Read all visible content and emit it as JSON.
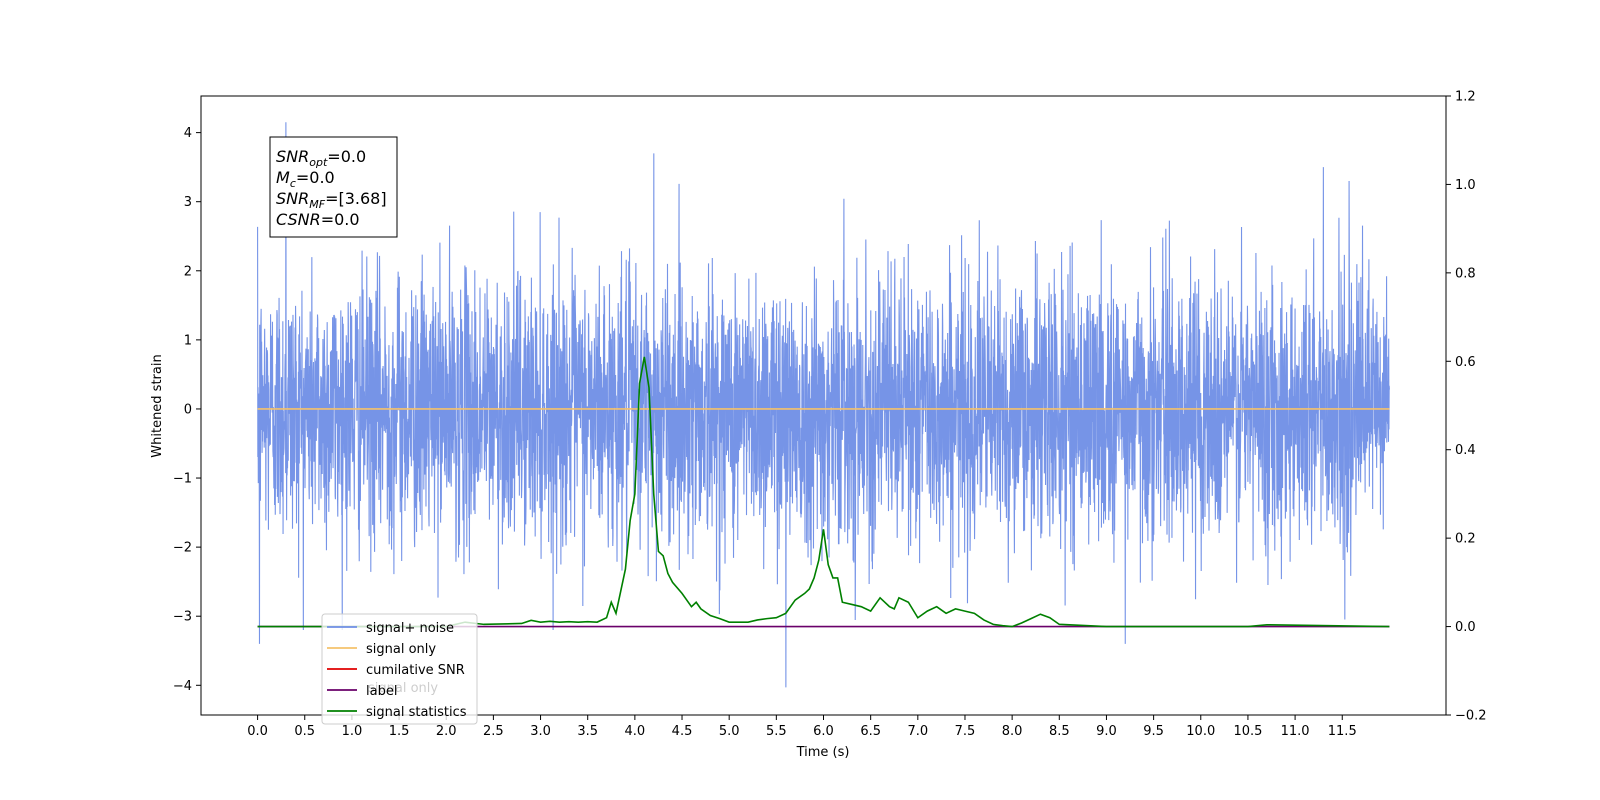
{
  "chart_data": {
    "type": "line",
    "xlabel": "Time (s)",
    "ylabel": "Whitened strain",
    "xlim": [
      -0.6,
      12.6
    ],
    "ylim": [
      -4.43,
      4.53
    ],
    "y2lim": [
      -0.2,
      1.2
    ],
    "x_ticks": [
      0.0,
      0.5,
      1.0,
      1.5,
      2.0,
      2.5,
      3.0,
      3.5,
      4.0,
      4.5,
      5.0,
      5.5,
      6.0,
      6.5,
      7.0,
      7.5,
      8.0,
      8.5,
      9.0,
      9.5,
      10.0,
      10.5,
      11.0,
      11.5
    ],
    "x_tick_labels": [
      "0.0",
      "0.5",
      "1.0",
      "1.5",
      "2.0",
      "2.5",
      "3.0",
      "3.5",
      "4.0",
      "4.5",
      "5.0",
      "5.5",
      "6.0",
      "6.5",
      "7.0",
      "7.5",
      "8.0",
      "8.5",
      "9.0",
      "9.5",
      "10.0",
      "10.5",
      "11.0",
      "11.5"
    ],
    "y_ticks": [
      4,
      3,
      2,
      1,
      0,
      -1,
      -2,
      -3,
      -4
    ],
    "y_tick_labels": [
      "4",
      "3",
      "2",
      "1",
      "0",
      "−1",
      "−2",
      "−3",
      "−4"
    ],
    "y2_ticks": [
      1.2,
      1.0,
      0.8,
      0.6,
      0.4,
      0.2,
      0.0,
      -0.2
    ],
    "y2_tick_labels": [
      "1.2",
      "1.0",
      "0.8",
      "0.6",
      "0.4",
      "0.2",
      "0.0",
      "−0.2"
    ],
    "grid": false,
    "legend_position": "bottom-left",
    "series": [
      {
        "name": "signal+ noise",
        "color": "#6f8ee6",
        "axis": "left",
        "style": "dense-noise",
        "x_range": [
          0.0,
          12.0
        ],
        "typical_range": [
          -1.7,
          1.8
        ],
        "extreme_peaks": [
          [
            0.3,
            4.15
          ],
          [
            4.2,
            3.7
          ],
          [
            11.3,
            3.5
          ],
          [
            5.6,
            -4.03
          ],
          [
            0.02,
            -3.4
          ],
          [
            9.2,
            -3.4
          ]
        ]
      },
      {
        "name": "signal only",
        "color": "#f5c26b",
        "axis": "left",
        "x": [
          0.0,
          12.0
        ],
        "values": [
          0.0,
          0.0
        ]
      },
      {
        "name": "cumilative SNR",
        "color": "#e00000",
        "axis": "right",
        "x": [],
        "values": []
      },
      {
        "name": "label",
        "color": "#6a006a",
        "axis": "right",
        "x": [
          0.0,
          12.0
        ],
        "values": [
          0.0,
          0.0
        ]
      },
      {
        "name": "signal statistics",
        "color": "#008000",
        "axis": "right",
        "x": [
          0.0,
          2.0,
          2.2,
          2.4,
          2.6,
          2.8,
          2.9,
          3.0,
          3.1,
          3.2,
          3.3,
          3.4,
          3.5,
          3.6,
          3.7,
          3.75,
          3.8,
          3.85,
          3.9,
          3.95,
          4.0,
          4.05,
          4.1,
          4.15,
          4.2,
          4.25,
          4.3,
          4.35,
          4.4,
          4.5,
          4.6,
          4.65,
          4.7,
          4.8,
          4.9,
          5.0,
          5.2,
          5.3,
          5.4,
          5.5,
          5.6,
          5.7,
          5.8,
          5.85,
          5.9,
          5.95,
          6.0,
          6.05,
          6.1,
          6.15,
          6.2,
          6.3,
          6.4,
          6.5,
          6.6,
          6.7,
          6.75,
          6.8,
          6.9,
          7.0,
          7.1,
          7.2,
          7.3,
          7.4,
          7.5,
          7.6,
          7.7,
          7.8,
          7.9,
          8.0,
          8.1,
          8.2,
          8.3,
          8.4,
          8.5,
          9.0,
          10.0,
          10.5,
          10.7,
          12.0
        ],
        "values": [
          0.0,
          0.0,
          0.01,
          0.005,
          0.006,
          0.007,
          0.014,
          0.01,
          0.012,
          0.01,
          0.011,
          0.01,
          0.011,
          0.01,
          0.02,
          0.055,
          0.03,
          0.08,
          0.13,
          0.24,
          0.3,
          0.55,
          0.61,
          0.54,
          0.3,
          0.17,
          0.16,
          0.12,
          0.1,
          0.075,
          0.045,
          0.055,
          0.04,
          0.025,
          0.018,
          0.01,
          0.01,
          0.015,
          0.018,
          0.02,
          0.03,
          0.06,
          0.075,
          0.085,
          0.11,
          0.15,
          0.22,
          0.14,
          0.11,
          0.11,
          0.055,
          0.05,
          0.045,
          0.035,
          0.065,
          0.045,
          0.04,
          0.065,
          0.055,
          0.02,
          0.035,
          0.045,
          0.03,
          0.04,
          0.035,
          0.03,
          0.015,
          0.005,
          0.002,
          0.0,
          0.008,
          0.018,
          0.028,
          0.02,
          0.005,
          0.0,
          0.0,
          0.0,
          0.004,
          0.0
        ]
      }
    ],
    "annotation": [
      {
        "base": "SNR",
        "sub": "opt",
        "value": "=0.0"
      },
      {
        "base": "M",
        "sub": "c",
        "value": "=0.0"
      },
      {
        "base": "SNR",
        "sub": "MF",
        "value": "=[3.68]"
      },
      {
        "base": "CSNR",
        "sub": "",
        "value": "=0.0"
      }
    ],
    "legend_entries": [
      {
        "label": "signal+ noise",
        "color": "#6f8ee6"
      },
      {
        "label": "signal only",
        "color": "#f5c26b"
      },
      {
        "label": "cumilative SNR",
        "color": "#e00000"
      },
      {
        "label": "label",
        "color": "#6a006a"
      },
      {
        "label": "signal statistics",
        "color": "#008000"
      }
    ],
    "legend_ghost_text": "signal only"
  }
}
